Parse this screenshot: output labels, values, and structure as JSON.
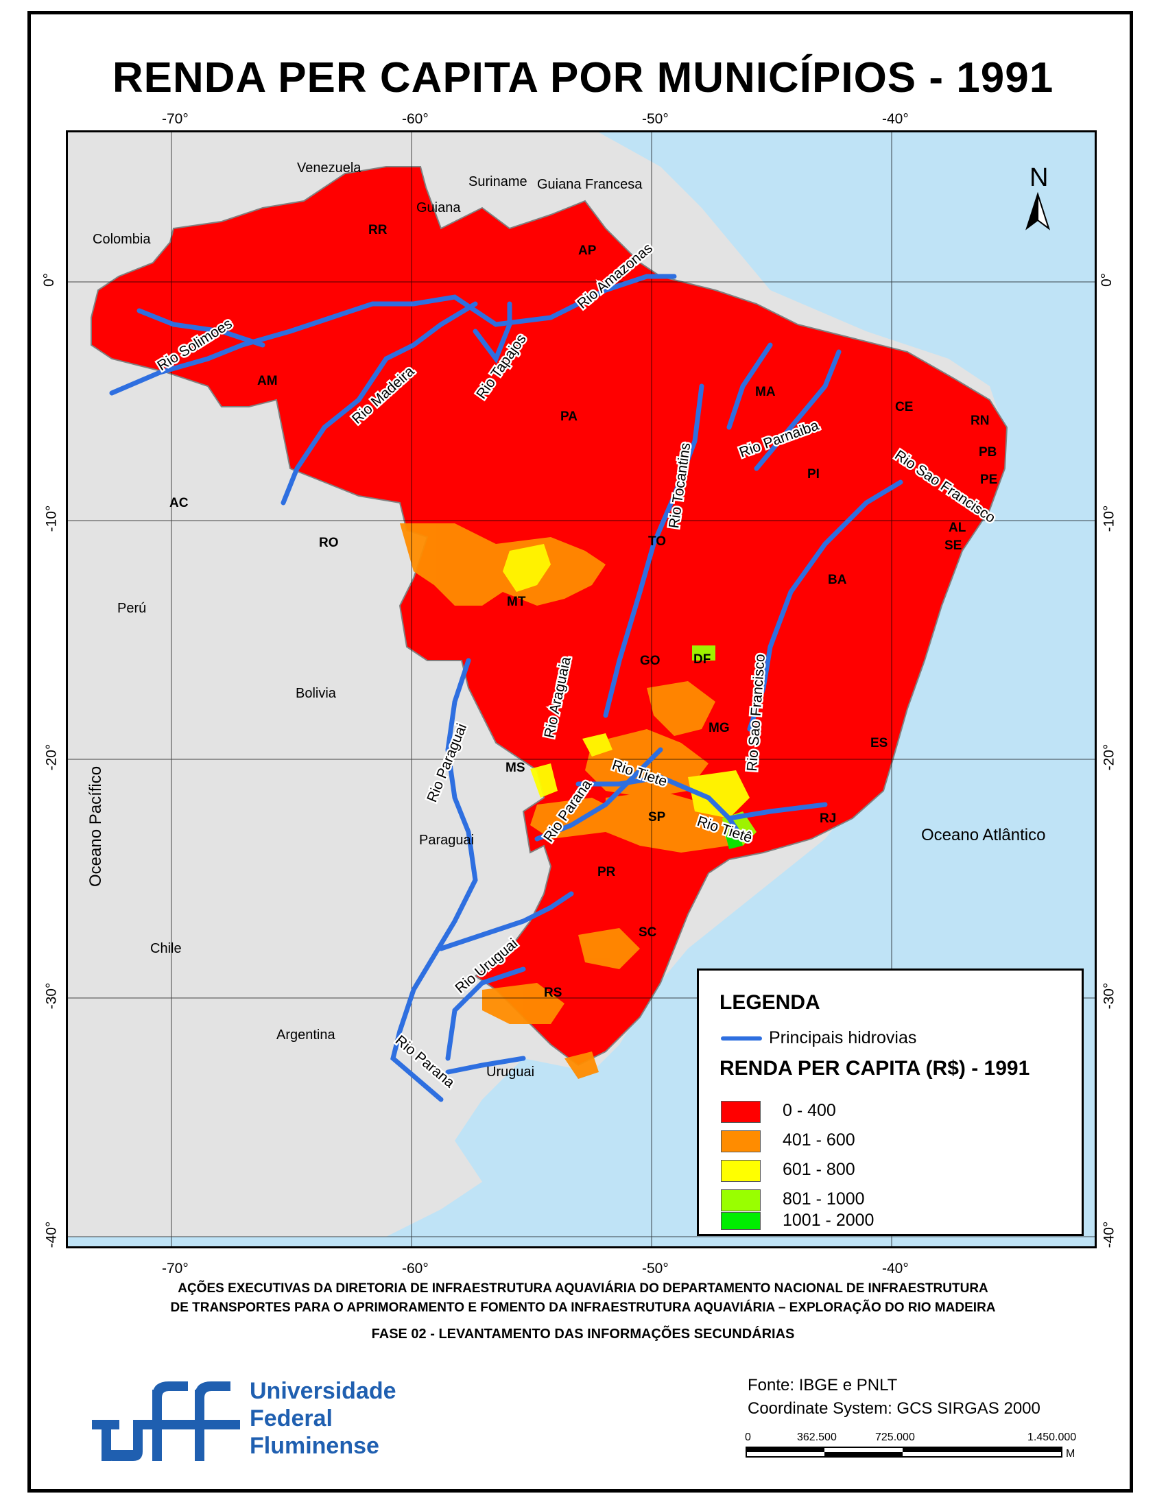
{
  "title": "RENDA PER CAPITA POR MUNICÍPIOS - 1991",
  "axes": {
    "lon_top": [
      "-70°",
      "-60°",
      "-50°",
      "-40°"
    ],
    "lon_bottom": [
      "-70°",
      "-60°",
      "-50°",
      "-40°"
    ],
    "lat_left": [
      "0°",
      "-10°",
      "-20°",
      "-30°",
      "-40°"
    ],
    "lat_right": [
      "0°",
      "-10°",
      "-20°",
      "-30°",
      "-40°"
    ]
  },
  "north": "N",
  "countries": [
    "Venezuela",
    "Guiana",
    "Suriname",
    "Guiana Francesa",
    "Colombia",
    "Perú",
    "Bolivia",
    "Paraguai",
    "Chile",
    "Argentina",
    "Uruguai"
  ],
  "oceans": {
    "pacific": "Oceano Pacífico",
    "atlantic": "Oceano Atlântico"
  },
  "states": [
    "RR",
    "AP",
    "AM",
    "PA",
    "MA",
    "CE",
    "RN",
    "PB",
    "PE",
    "PI",
    "AL",
    "SE",
    "AC",
    "RO",
    "TO",
    "BA",
    "MT",
    "GO",
    "DF",
    "MG",
    "ES",
    "MS",
    "SP",
    "RJ",
    "PR",
    "SC",
    "RS"
  ],
  "rivers": [
    "Rio Solimoes",
    "Rio Madeira",
    "Rio Tapajos",
    "Rio Amazonas",
    "Rio Tocantins",
    "Rio Parnaiba",
    "Rio Sao Francisco",
    "Rio Araguaia",
    "Rio Sao Francisco",
    "Rio Paraguai",
    "Rio Parana",
    "Rio Tiete",
    "Rio Tietê",
    "Rio Uruguai",
    "Rio Parana"
  ],
  "legend": {
    "heading": "LEGENDA",
    "river_label": "Principais hidrovias",
    "income_heading": "RENDA PER CAPITA (R$) - 1991",
    "classes": [
      {
        "label": "0 - 400",
        "color": "#ff0000"
      },
      {
        "label": "401 - 600",
        "color": "#ff8c00"
      },
      {
        "label": "601 - 800",
        "color": "#ffff00"
      },
      {
        "label": "801 - 1000",
        "color": "#99ff00"
      },
      {
        "label": "1001 - 2000",
        "color": "#00ee00"
      }
    ]
  },
  "footer": {
    "line1": "AÇÕES EXECUTIVAS DA DIRETORIA DE INFRAESTRUTURA AQUAVIÁRIA DO DEPARTAMENTO NACIONAL DE INFRAESTRUTURA",
    "line2": "DE TRANSPORTES PARA O APRIMORAMENTO E FOMENTO DA INFRAESTRUTURA AQUAVIÁRIA – EXPLORAÇÃO DO RIO MADEIRA",
    "line3": "FASE 02 - LEVANTAMENTO DAS INFORMAÇÕES SECUNDÁRIAS"
  },
  "institution": {
    "line1": "Universidade",
    "line2": "Federal",
    "line3": "Fluminense"
  },
  "source": "Fonte: IBGE e PNLT",
  "crs": "Coordinate System: GCS SIRGAS 2000",
  "scale": {
    "labels": [
      "0",
      "362.500",
      "725.000",
      "1.450.000"
    ],
    "unit": "M"
  },
  "colors": {
    "ocean": "#bfe3f6",
    "land": "#e3e3e3",
    "river": "#2e6fe0",
    "border": "#808080"
  }
}
